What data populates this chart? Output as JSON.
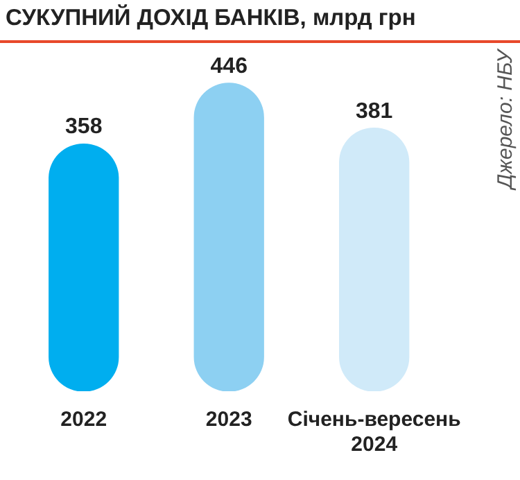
{
  "chart_data": {
    "type": "bar",
    "title": "СУКУПНИЙ ДОХІД БАНКІВ, млрд грн",
    "categories": [
      "2022",
      "2023",
      "Січень-вересень 2024"
    ],
    "values": [
      358,
      446,
      381
    ],
    "colors": [
      "#00aeef",
      "#8dd0f2",
      "#d0eaf9"
    ],
    "data_labels": true,
    "grid": false,
    "legend": false,
    "tick_labels": "x",
    "annotations": [
      "Джерело: НБУ"
    ]
  }
}
